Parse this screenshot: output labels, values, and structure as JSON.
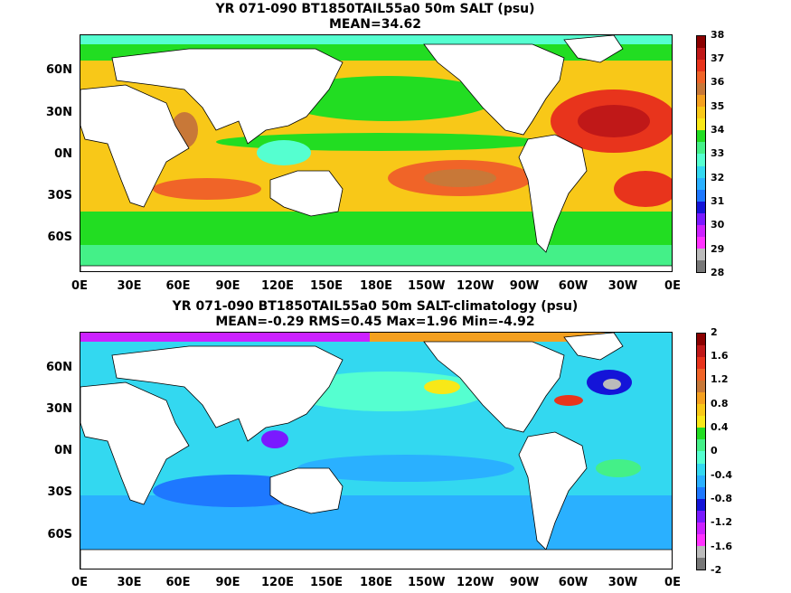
{
  "top": {
    "title_line1": "YR 071-090 BT1850TAIL55a0 50m SALT (psu)",
    "title_line2": "MEAN=34.62",
    "lat_labels": [
      "60N",
      "30N",
      "0N",
      "30S",
      "60S"
    ],
    "lon_labels": [
      "0E",
      "30E",
      "60E",
      "90E",
      "120E",
      "150E",
      "180E",
      "150W",
      "120W",
      "90W",
      "60W",
      "30W",
      "0E"
    ],
    "colorbar_labels": [
      "38",
      "37",
      "36",
      "35",
      "34",
      "33",
      "32",
      "31",
      "30",
      "29",
      "28"
    ],
    "colorbar_colors": [
      "#8b0000",
      "#c01818",
      "#e8341c",
      "#f06428",
      "#c87838",
      "#f4a020",
      "#f8c818",
      "#f8e818",
      "#22dd22",
      "#44f088",
      "#55ffd0",
      "#33d8f0",
      "#2ab0ff",
      "#1e78ff",
      "#1414d8",
      "#7a1aff",
      "#cc22ff",
      "#ff33ff",
      "#bbbbbb",
      "#777777"
    ],
    "ocean_color": "#f8c818"
  },
  "bottom": {
    "title_line1": "YR 071-090 BT1850TAIL55a0 50m SALT-climatology (psu)",
    "title_line2": "MEAN=-0.29   RMS=0.45   Max=1.96   Min=-4.92",
    "lat_labels": [
      "60N",
      "30N",
      "0N",
      "30S",
      "60S"
    ],
    "lon_labels": [
      "0E",
      "30E",
      "60E",
      "90E",
      "120E",
      "150E",
      "180E",
      "150W",
      "120W",
      "90W",
      "60W",
      "30W",
      "0E"
    ],
    "colorbar_labels": [
      "2",
      "1.6",
      "1.2",
      "0.8",
      "0.4",
      "0",
      "-0.4",
      "-0.8",
      "-1.2",
      "-1.6",
      "-2"
    ],
    "colorbar_colors": [
      "#8b0000",
      "#c01818",
      "#e8341c",
      "#f06428",
      "#c87838",
      "#f4a020",
      "#f8c818",
      "#f8e818",
      "#22dd22",
      "#44f088",
      "#55ffd0",
      "#33d8f0",
      "#2ab0ff",
      "#1e78ff",
      "#1414d8",
      "#7a1aff",
      "#cc22ff",
      "#ff33ff",
      "#bbbbbb",
      "#777777"
    ],
    "ocean_color": "#33d8f0"
  }
}
